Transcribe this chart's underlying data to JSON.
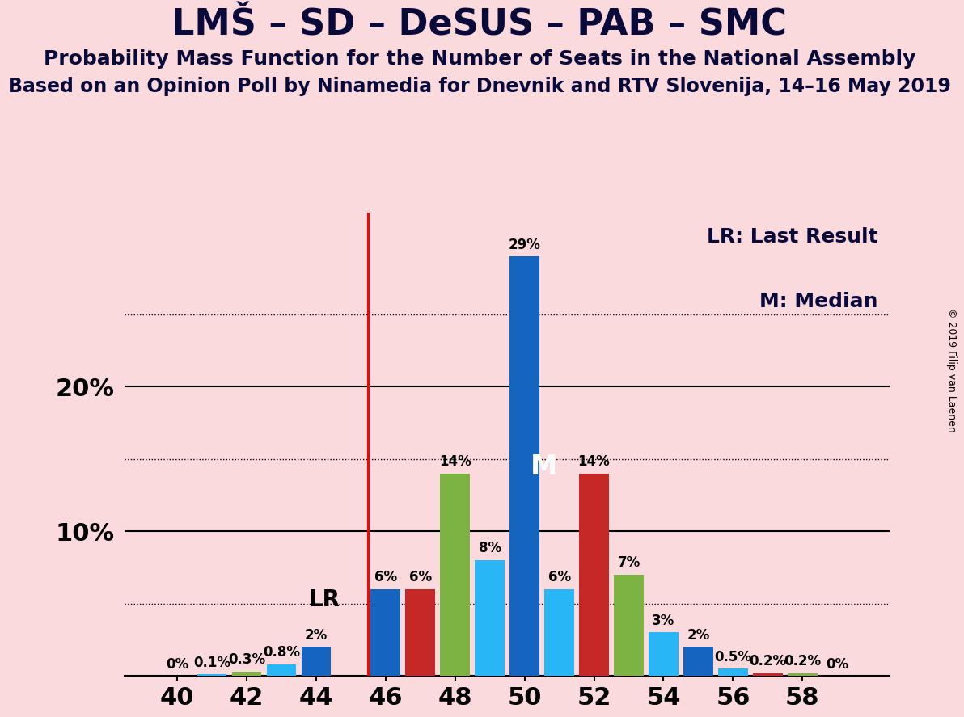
{
  "title": "LMŠ – SD – DeSUS – PAB – SMC",
  "subtitle1": "Probability Mass Function for the Number of Seats in the National Assembly",
  "subtitle2": "Based on an Opinion Poll by Ninamedia for Dnevnik and RTV Slovenija, 14–16 May 2019",
  "copyright": "© 2019 Filip van Laenen",
  "legend_lr": "LR: Last Result",
  "legend_m": "M: Median",
  "bg": "#fadadd",
  "bars": [
    {
      "x": 40,
      "v": 0.001,
      "c": "#1565c0",
      "lbl": "0%"
    },
    {
      "x": 41,
      "v": 0.1,
      "c": "#29b6f6",
      "lbl": "0.1%"
    },
    {
      "x": 42,
      "v": 0.3,
      "c": "#7cb342",
      "lbl": "0.3%"
    },
    {
      "x": 43,
      "v": 0.8,
      "c": "#29b6f6",
      "lbl": "0.8%"
    },
    {
      "x": 44,
      "v": 2.0,
      "c": "#1565c0",
      "lbl": "2%"
    },
    {
      "x": 46,
      "v": 6.0,
      "c": "#1565c0",
      "lbl": "6%"
    },
    {
      "x": 47,
      "v": 6.0,
      "c": "#c62828",
      "lbl": "6%"
    },
    {
      "x": 48,
      "v": 14.0,
      "c": "#7cb342",
      "lbl": "14%"
    },
    {
      "x": 49,
      "v": 8.0,
      "c": "#29b6f6",
      "lbl": "8%"
    },
    {
      "x": 50,
      "v": 29.0,
      "c": "#1565c0",
      "lbl": "29%"
    },
    {
      "x": 51,
      "v": 6.0,
      "c": "#29b6f6",
      "lbl": "6%"
    },
    {
      "x": 52,
      "v": 14.0,
      "c": "#c62828",
      "lbl": "14%"
    },
    {
      "x": 53,
      "v": 7.0,
      "c": "#7cb342",
      "lbl": "7%"
    },
    {
      "x": 54,
      "v": 3.0,
      "c": "#29b6f6",
      "lbl": "3%"
    },
    {
      "x": 55,
      "v": 2.0,
      "c": "#1565c0",
      "lbl": "2%"
    },
    {
      "x": 56,
      "v": 0.5,
      "c": "#29b6f6",
      "lbl": "0.5%"
    },
    {
      "x": 57,
      "v": 0.2,
      "c": "#c62828",
      "lbl": "0.2%"
    },
    {
      "x": 58,
      "v": 0.2,
      "c": "#7cb342",
      "lbl": "0.2%"
    },
    {
      "x": 59,
      "v": 0.001,
      "c": "#1565c0",
      "lbl": "0%"
    }
  ],
  "lr_x": 45.5,
  "lr_lbl_x": 44.7,
  "lr_lbl_y": 5.3,
  "median_bar_x": 50,
  "median_lbl_x": 50.55,
  "median_lbl_y": 14.5,
  "solid_hlines": [
    10.0,
    20.0
  ],
  "dotted_hlines": [
    5.0,
    15.0,
    25.0
  ],
  "xlim": [
    38.5,
    60.5
  ],
  "ylim": [
    0,
    32
  ],
  "xticks": [
    40,
    42,
    44,
    46,
    48,
    50,
    52,
    54,
    56,
    58
  ],
  "ytick_pos": [
    10,
    20
  ],
  "ytick_lbls": [
    "10%",
    "20%"
  ],
  "bar_width": 0.85,
  "title_fs": 32,
  "sub1_fs": 18,
  "sub2_fs": 17,
  "tick_fs": 22,
  "bar_lbl_fs": 12,
  "legend_fs": 18,
  "lr_lbl_fs": 20,
  "m_lbl_fs": 24,
  "copy_fs": 9
}
